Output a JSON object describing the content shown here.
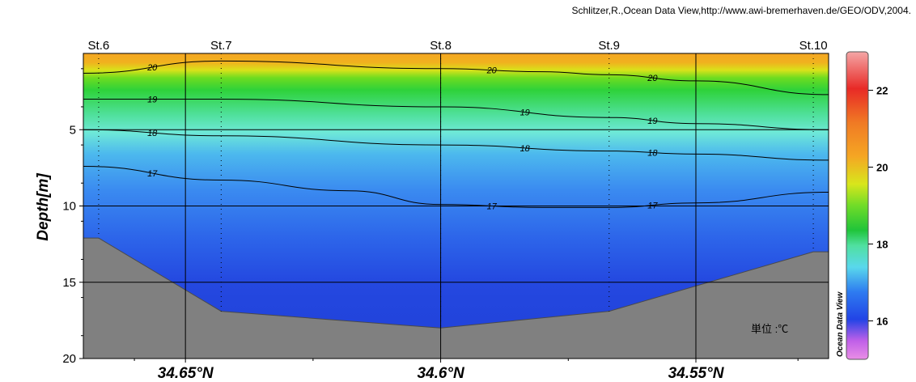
{
  "credit": "Schlitzer,R.,Ocean Data View,http://www.awi-bremerhaven.de/GEO/ODV,2004.",
  "unit_note": "単位 :℃",
  "watermark": "Ocean Data View",
  "chart_data": {
    "type": "section-contour",
    "ylabel": "Depth[m]",
    "xlabel": "",
    "variable_unit": "℃",
    "xlim": [
      34.67,
      34.524
    ],
    "ylim": [
      20,
      0
    ],
    "x_ticks": [
      {
        "value": 34.65,
        "label": "34.65°N"
      },
      {
        "value": 34.6,
        "label": "34.6°N"
      },
      {
        "value": 34.55,
        "label": "34.55°N"
      }
    ],
    "y_ticks": [
      5,
      10,
      15,
      20
    ],
    "stations": [
      {
        "name": "St.6",
        "lat": 34.667,
        "bottom_depth": 12.1
      },
      {
        "name": "St.7",
        "lat": 34.643,
        "bottom_depth": 16.9
      },
      {
        "name": "St.8",
        "lat": 34.6,
        "bottom_depth": 18.0
      },
      {
        "name": "St.9",
        "lat": 34.567,
        "bottom_depth": 16.9
      },
      {
        "name": "St.10",
        "lat": 34.527,
        "bottom_depth": 13.0
      }
    ],
    "contours": [
      {
        "level": 20,
        "lat": [
          34.67,
          34.643,
          34.6,
          34.58,
          34.567,
          34.55,
          34.524
        ],
        "depth": [
          1.3,
          0.5,
          1.0,
          1.2,
          1.4,
          1.8,
          2.7
        ]
      },
      {
        "level": 19,
        "lat": [
          34.67,
          34.643,
          34.6,
          34.567,
          34.55,
          34.524
        ],
        "depth": [
          3.0,
          3.0,
          3.5,
          4.2,
          4.6,
          5.0
        ]
      },
      {
        "level": 18,
        "lat": [
          34.67,
          34.643,
          34.6,
          34.567,
          34.55,
          34.524
        ],
        "depth": [
          5.0,
          5.4,
          6.0,
          6.4,
          6.6,
          7.0
        ]
      },
      {
        "level": 17,
        "lat": [
          34.67,
          34.643,
          34.618,
          34.6,
          34.58,
          34.567,
          34.55,
          34.524
        ],
        "depth": [
          7.4,
          8.3,
          9.0,
          9.9,
          10.1,
          10.1,
          9.8,
          9.1
        ]
      }
    ],
    "colorbar": {
      "min": 15.0,
      "max": 23.0,
      "ticks": [
        16,
        18,
        20,
        22
      ]
    },
    "grid": true
  }
}
